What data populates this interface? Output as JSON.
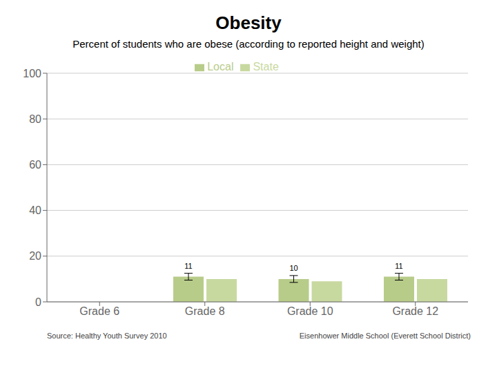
{
  "chart_data": {
    "type": "bar",
    "title": "Obesity",
    "subtitle": "Percent of students who are obese (according to reported height and weight)",
    "annotations": [
      "Source: Healthy Youth Survey 2010",
      "Eisenhower Middle School (Everett School District)"
    ],
    "categories": [
      "Grade 6",
      "Grade 8",
      "Grade 10",
      "Grade 12"
    ],
    "series": [
      {
        "name": "Local",
        "color": "#b8cc8a",
        "values": [
          null,
          11,
          10,
          11
        ],
        "errors": [
          null,
          1.5,
          1.5,
          1.5
        ],
        "data_labels": true
      },
      {
        "name": "State",
        "color": "#c8d9a0",
        "values": [
          null,
          10,
          9,
          10
        ]
      }
    ],
    "ylim": [
      0,
      100
    ],
    "yticks": [
      0,
      20,
      40,
      60,
      80,
      100
    ],
    "grid": true,
    "legend": "top"
  }
}
